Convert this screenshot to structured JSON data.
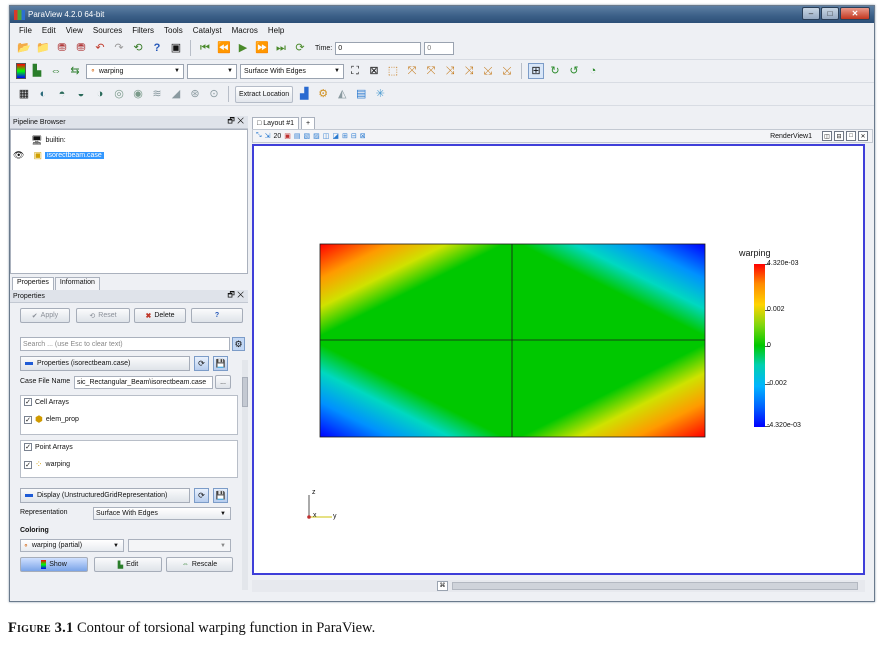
{
  "window": {
    "title": "ParaView 4.2.0 64-bit",
    "buttons": {
      "minimize": "–",
      "maximize": "□",
      "close": "✕"
    }
  },
  "menu": [
    "File",
    "Edit",
    "View",
    "Sources",
    "Filters",
    "Tools",
    "Catalyst",
    "Macros",
    "Help"
  ],
  "toolbar": {
    "time_label": "Time:",
    "time_value": "0",
    "time_index": "0",
    "coloring_combo": "warping",
    "representation_combo": "Surface With Edges",
    "extract_location": "Extract Location"
  },
  "pipeline_browser": {
    "title": "Pipeline Browser",
    "root": "builtin:",
    "item": "isorectbeam.case"
  },
  "tabs": {
    "properties": "Properties",
    "information": "Information"
  },
  "properties": {
    "title": "Properties",
    "apply": "Apply",
    "reset": "Reset",
    "delete": "Delete",
    "help": "?",
    "search_placeholder": "Search ... (use Esc to clear text)",
    "section_properties": "Properties (isorectbeam.case)",
    "case_file_label": "Case File Name",
    "case_file_value": "sic_Rectangular_Beam\\isorectbeam.case",
    "case_file_browse": "...",
    "cell_arrays_label": "Cell Arrays",
    "cell_array_item": "elem_prop",
    "point_arrays_label": "Point Arrays",
    "point_array_item": "warping",
    "section_display": "Display (UnstructuredGridRepresentation)",
    "representation_label": "Representation",
    "representation_value": "Surface With Edges",
    "coloring_label": "Coloring",
    "coloring_value": "warping (partial)",
    "show": "Show",
    "edit": "Edit",
    "rescale": "Rescale"
  },
  "layout": {
    "tab": "Layout #1",
    "add_tab": "+",
    "render_view": "RenderView1",
    "view_toolbar_value": "20"
  },
  "color_legend": {
    "title": "warping",
    "labels": [
      "4.320e-03",
      "0.002",
      "0",
      "-0.002",
      "-4.320e-03"
    ]
  },
  "axes": {
    "z": "z",
    "x": "x",
    "y": "y"
  },
  "caption": {
    "label": "Figure 3.1",
    "text": "Contour of torsional warping function in ParaView."
  },
  "colors": {
    "selection": "#3398ff",
    "viewport_border": "#3f3fd9",
    "title_bar": "#3d6189"
  }
}
